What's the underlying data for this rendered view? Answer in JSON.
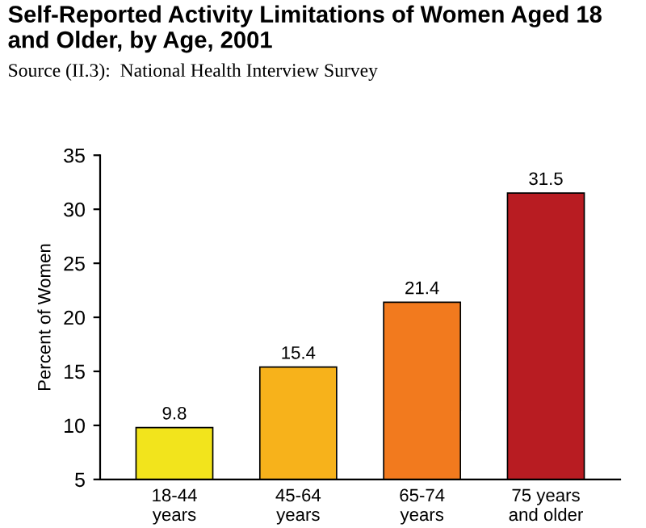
{
  "chart_data": {
    "type": "bar",
    "title": "Self-Reported Activity Limitations of Women Aged 18 and Older, by Age, 2001",
    "subtitle": "Source (II.3):  National Health Interview Survey",
    "ylabel": "Percent of Women",
    "categories": [
      "18-44\nyears",
      "45-64\nyears",
      "65-74\nyears",
      "75 years\nand older"
    ],
    "values": [
      9.8,
      15.4,
      21.4,
      31.5
    ],
    "colors": [
      "#f2e41c",
      "#f7b21b",
      "#f27a1e",
      "#b81c22"
    ],
    "ylim": [
      5,
      35
    ],
    "yticks": [
      5,
      10,
      15,
      20,
      25,
      30,
      35
    ],
    "grid": false,
    "data_labels": true
  }
}
